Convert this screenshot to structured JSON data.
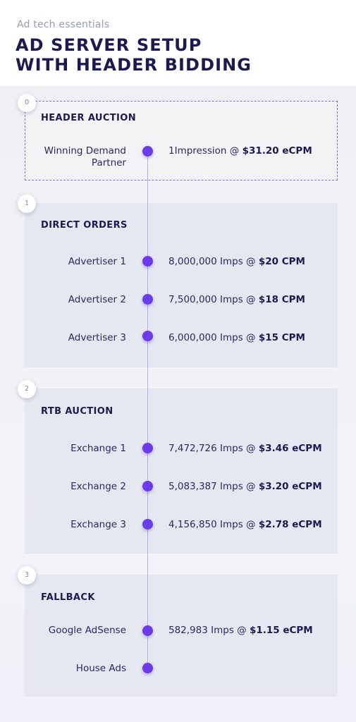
{
  "header": {
    "kicker": "Ad tech essentials",
    "title_line1": "AD SERVER SETUP",
    "title_line2": "WITH HEADER BIDDING"
  },
  "colors": {
    "accent": "#6a3be6",
    "title": "#1c1a4f",
    "section_bg": "#e5e8f1",
    "timeline": "#b3aef2"
  },
  "sections": [
    {
      "number": "0",
      "title": "HEADER AUCTION",
      "rows": [
        {
          "label_line1": "Winning Demand",
          "label_line2": "Partner",
          "value_prefix": "1Impression @ ",
          "value_bold": "$31.20 eCPM"
        }
      ]
    },
    {
      "number": "1",
      "title": "DIRECT ORDERS",
      "rows": [
        {
          "label": "Advertiser 1",
          "value_prefix": "8,000,000 Imps @ ",
          "value_bold": "$20 CPM"
        },
        {
          "label": "Advertiser 2",
          "value_prefix": "7,500,000 Imps @ ",
          "value_bold": "$18 CPM"
        },
        {
          "label": "Advertiser 3",
          "value_prefix": "6,000,000 Imps @ ",
          "value_bold": "$15 CPM"
        }
      ]
    },
    {
      "number": "2",
      "title": "RTB AUCTION",
      "rows": [
        {
          "label": "Exchange 1",
          "value_prefix": "7,472,726 Imps @ ",
          "value_bold": "$3.46 eCPM"
        },
        {
          "label": "Exchange 2",
          "value_prefix": "5,083,387 Imps @ ",
          "value_bold": "$3.20 eCPM"
        },
        {
          "label": "Exchange 3",
          "value_prefix": "4,156,850 Imps @ ",
          "value_bold": "$2.78 eCPM"
        }
      ]
    },
    {
      "number": "3",
      "title": "FALLBACK",
      "rows": [
        {
          "label": "Google AdSense",
          "value_prefix": "582,983 Imps @ ",
          "value_bold": "$1.15 eCPM"
        },
        {
          "label": "House Ads"
        }
      ]
    }
  ]
}
